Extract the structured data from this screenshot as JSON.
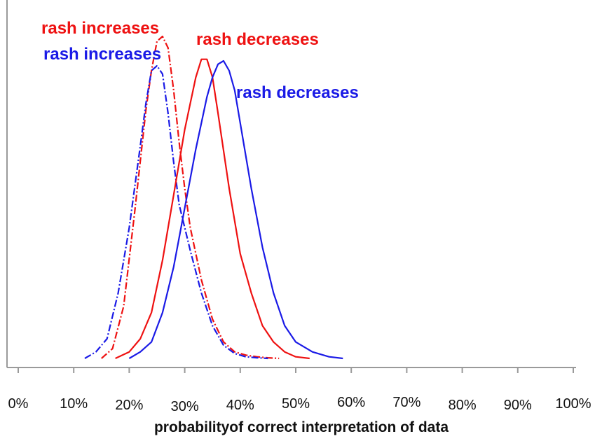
{
  "chart_data": {
    "type": "line",
    "title": "",
    "xlabel": "probabilityof correct interpretation of data",
    "ylabel": "",
    "xlim": [
      0,
      100
    ],
    "ylim": [
      0,
      1.0
    ],
    "grid": false,
    "x_tick_labels": [
      {
        "value": 0,
        "label": "0%",
        "dy": 0
      },
      {
        "value": 10,
        "label": "10%",
        "dy": 0
      },
      {
        "value": 20,
        "label": "20%",
        "dy": 2
      },
      {
        "value": 30,
        "label": "30%",
        "dy": 4
      },
      {
        "value": 40,
        "label": "40%",
        "dy": 2
      },
      {
        "value": 50,
        "label": "50%",
        "dy": 0
      },
      {
        "value": 60,
        "label": "60%",
        "dy": -2
      },
      {
        "value": 70,
        "label": "70%",
        "dy": -2
      },
      {
        "value": 80,
        "label": "80%",
        "dy": 2
      },
      {
        "value": 90,
        "label": "90%",
        "dy": 2
      },
      {
        "value": 100,
        "label": "100%",
        "dy": 0
      }
    ],
    "series": [
      {
        "color": "#ee1111",
        "dash": "dashdot",
        "x": [
          15,
          17,
          19,
          21,
          23,
          24,
          25,
          26,
          27,
          28,
          29,
          30,
          31,
          33,
          35,
          37,
          39,
          41,
          43,
          45,
          47
        ],
        "y": [
          0.0,
          0.03,
          0.16,
          0.45,
          0.76,
          0.88,
          0.97,
          0.985,
          0.95,
          0.82,
          0.66,
          0.52,
          0.4,
          0.24,
          0.12,
          0.05,
          0.02,
          0.01,
          0.005,
          0.002,
          0.0
        ]
      },
      {
        "color": "#1a1ae6",
        "dash": "dashdot",
        "x": [
          12,
          14,
          16,
          18,
          20,
          22,
          23,
          24,
          25,
          26,
          27,
          28,
          29,
          31,
          33,
          35,
          37,
          39,
          41,
          43,
          45
        ],
        "y": [
          0.0,
          0.02,
          0.06,
          0.2,
          0.4,
          0.65,
          0.78,
          0.88,
          0.895,
          0.87,
          0.75,
          0.6,
          0.47,
          0.33,
          0.2,
          0.1,
          0.04,
          0.015,
          0.005,
          0.002,
          0.0
        ]
      },
      {
        "color": "#ee1111",
        "dash": "solid",
        "x": [
          17.5,
          20,
          22,
          24,
          26,
          28,
          30,
          31,
          32,
          33,
          34,
          35,
          36,
          38,
          40,
          42,
          44,
          46,
          48,
          50,
          52.5
        ],
        "y": [
          0.0,
          0.02,
          0.06,
          0.14,
          0.3,
          0.5,
          0.7,
          0.78,
          0.86,
          0.915,
          0.915,
          0.86,
          0.75,
          0.52,
          0.32,
          0.2,
          0.1,
          0.05,
          0.02,
          0.005,
          0.0
        ]
      },
      {
        "color": "#1a1ae6",
        "dash": "solid",
        "x": [
          20,
          22,
          24,
          26,
          28,
          30,
          32,
          34,
          35,
          36,
          37,
          38,
          39,
          40,
          42,
          44,
          46,
          48,
          50,
          53,
          56,
          58.5
        ],
        "y": [
          0.0,
          0.02,
          0.05,
          0.14,
          0.28,
          0.46,
          0.64,
          0.8,
          0.86,
          0.9,
          0.91,
          0.88,
          0.82,
          0.72,
          0.52,
          0.34,
          0.2,
          0.1,
          0.05,
          0.02,
          0.005,
          0.0
        ]
      }
    ],
    "annotations": [
      {
        "text": "rash increases",
        "color": "#ee1111"
      },
      {
        "text": "rash increases",
        "color": "#1a1ae6"
      },
      {
        "text": "rash decreases",
        "color": "#ee1111"
      },
      {
        "text": "rash decreases",
        "color": "#1a1ae6"
      }
    ]
  }
}
